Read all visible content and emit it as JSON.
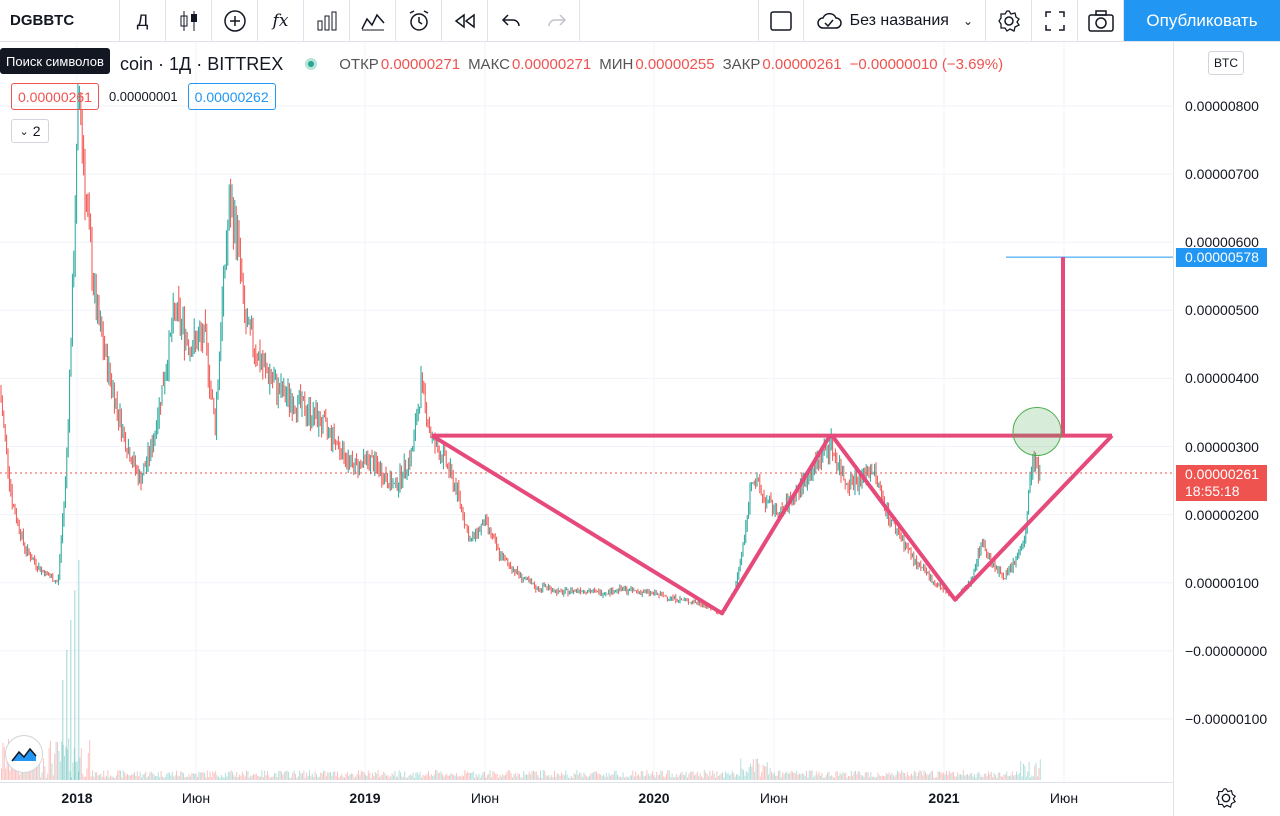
{
  "toolbar": {
    "symbol": "DGBBTC",
    "interval": "Д",
    "layout_name": "Без названия",
    "publish": "Опубликовать",
    "tooltip": "Поиск символов",
    "icons": [
      "candles-icon",
      "plus-circle-icon",
      "function-icon",
      "bar-chart-icon",
      "template-icon",
      "alarm-icon",
      "replay-icon",
      "undo-icon",
      "redo-icon",
      "square-icon",
      "cloud-icon",
      "chevron-down-icon",
      "gear-icon",
      "fullscreen-icon",
      "camera-icon"
    ]
  },
  "legend": {
    "title": "coin · 1Д · BITTREX",
    "open_label": "ОТКР",
    "open": "0.00000271",
    "high_label": "МАКС",
    "high": "0.00000271",
    "low_label": "МИН",
    "low": "0.00000255",
    "close_label": "ЗАКР",
    "close": "0.00000261",
    "change": "−0.00000010 (−3.69%)",
    "bid": "0.00000261",
    "spread": "0.00000001",
    "ask": "0.00000262",
    "collapse_count": "2"
  },
  "axis": {
    "currency": "BTC",
    "y_ticks": [
      "0.00000800",
      "0.00000700",
      "0.00000600",
      "0.00000500",
      "0.00000400",
      "0.00000300",
      "0.00000200",
      "0.00000100",
      "−0.00000000",
      "−0.00000100"
    ],
    "target_label": "0.00000578",
    "last_price": "0.00000261",
    "countdown": "18:55:18",
    "x_ticks": [
      "2018",
      "Июн",
      "2019",
      "Июн",
      "2020",
      "Июн",
      "2021",
      "Июн"
    ]
  },
  "chart_data": {
    "type": "candlestick",
    "ylim": [
      -1.8e-06,
      9.8e-06
    ],
    "annotations": "inverse head and shoulders pattern with neckline and target",
    "colors": {
      "up": "#26a69a",
      "down": "#ef5350",
      "drawing": "#e64a7a",
      "target": "#2196f3"
    },
    "neckline": 3.16e-06,
    "target": 5.78e-06,
    "last": 2.61e-06
  }
}
